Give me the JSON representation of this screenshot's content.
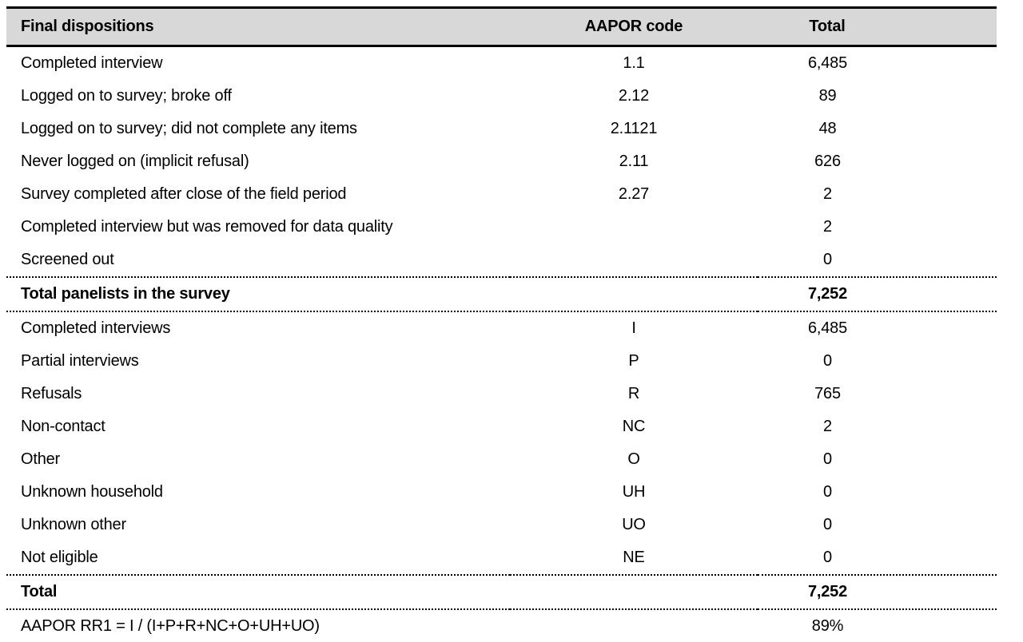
{
  "table": {
    "columns": [
      "Final dispositions",
      "AAPOR code",
      "Total"
    ],
    "rows": [
      {
        "label": "Completed interview",
        "code": "1.1",
        "total": "6,485",
        "bold": false,
        "sep_above": false
      },
      {
        "label": "Logged on to survey; broke off",
        "code": "2.12",
        "total": "89",
        "bold": false,
        "sep_above": false
      },
      {
        "label": "Logged on to survey; did not complete any items",
        "code": "2.1121",
        "total": "48",
        "bold": false,
        "sep_above": false
      },
      {
        "label": "Never logged on (implicit refusal)",
        "code": "2.11",
        "total": "626",
        "bold": false,
        "sep_above": false
      },
      {
        "label": "Survey completed after close of the field period",
        "code": "2.27",
        "total": "2",
        "bold": false,
        "sep_above": false
      },
      {
        "label": "Completed interview but was removed for data quality",
        "code": "",
        "total": "2",
        "bold": false,
        "sep_above": false
      },
      {
        "label": "Screened out",
        "code": "",
        "total": "0",
        "bold": false,
        "sep_above": false
      },
      {
        "label": "Total panelists in the survey",
        "code": "",
        "total": "7,252",
        "bold": true,
        "sep_above": true
      },
      {
        "label": "Completed interviews",
        "code": "I",
        "total": "6,485",
        "bold": false,
        "sep_above": true
      },
      {
        "label": "Partial interviews",
        "code": "P",
        "total": "0",
        "bold": false,
        "sep_above": false
      },
      {
        "label": "Refusals",
        "code": "R",
        "total": "765",
        "bold": false,
        "sep_above": false
      },
      {
        "label": "Non-contact",
        "code": "NC",
        "total": "2",
        "bold": false,
        "sep_above": false
      },
      {
        "label": "Other",
        "code": "O",
        "total": "0",
        "bold": false,
        "sep_above": false
      },
      {
        "label": "Unknown household",
        "code": "UH",
        "total": "0",
        "bold": false,
        "sep_above": false
      },
      {
        "label": "Unknown other",
        "code": "UO",
        "total": "0",
        "bold": false,
        "sep_above": false
      },
      {
        "label": "Not eligible",
        "code": "NE",
        "total": "0",
        "bold": false,
        "sep_above": false
      },
      {
        "label": "Total",
        "code": "",
        "total": "7,252",
        "bold": true,
        "sep_above": true
      },
      {
        "label": "AAPOR RR1 = I / (I+P+R+NC+O+UH+UO)",
        "code": "",
        "total": "89%",
        "bold": false,
        "sep_above": true
      }
    ],
    "colors": {
      "header_bg": "#d8d8d8",
      "border": "#000000",
      "text": "#000000",
      "background": "#ffffff"
    }
  }
}
